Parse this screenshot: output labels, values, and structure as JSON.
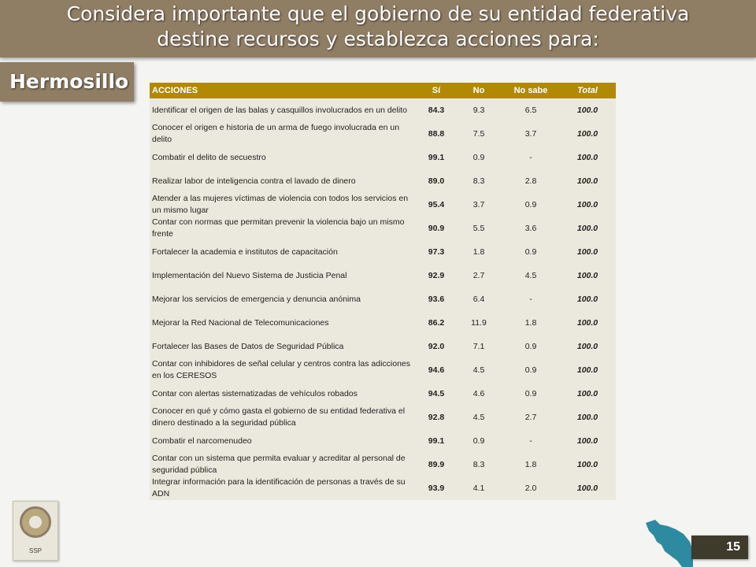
{
  "header": {
    "title_line1": "Considera importante que el gobierno de su entidad federativa",
    "title_line2": "destine recursos y establezca acciones para:"
  },
  "city": "Hermosillo",
  "table": {
    "columns": [
      "ACCIONES",
      "Sí",
      "No",
      "No sabe",
      "Total"
    ],
    "rows": [
      {
        "accion": "Identificar el origen de las balas y casquillos involucrados en un delito",
        "si": "84.3",
        "no": "9.3",
        "no_sabe": "6.5",
        "total": "100.0"
      },
      {
        "accion": "Conocer el origen e historia de un arma de fuego involucrada en un delito",
        "si": "88.8",
        "no": "7.5",
        "no_sabe": "3.7",
        "total": "100.0"
      },
      {
        "accion": "Combatir el delito de secuestro",
        "si": "99.1",
        "no": "0.9",
        "no_sabe": "-",
        "total": "100.0"
      },
      {
        "accion": "Realizar labor de inteligencia contra el lavado de dinero",
        "si": "89.0",
        "no": "8.3",
        "no_sabe": "2.8",
        "total": "100.0"
      },
      {
        "accion": "Atender a las mujeres víctimas de violencia con todos los servicios en un mismo lugar",
        "si": "95.4",
        "no": "3.7",
        "no_sabe": "0.9",
        "total": "100.0"
      },
      {
        "accion": "Contar con normas que permitan prevenir la violencia bajo un mismo frente",
        "si": "90.9",
        "no": "5.5",
        "no_sabe": "3.6",
        "total": "100.0"
      },
      {
        "accion": "Fortalecer la academia e institutos de capacitación",
        "si": "97.3",
        "no": "1.8",
        "no_sabe": "0.9",
        "total": "100.0"
      },
      {
        "accion": "Implementación del Nuevo Sistema de Justicia Penal",
        "si": "92.9",
        "no": "2.7",
        "no_sabe": "4.5",
        "total": "100.0"
      },
      {
        "accion": "Mejorar los servicios de emergencia y denuncia anónima",
        "si": "93.6",
        "no": "6.4",
        "no_sabe": "-",
        "total": "100.0"
      },
      {
        "accion": "Mejorar la Red Nacional de Telecomunicaciones",
        "si": "86.2",
        "no": "11.9",
        "no_sabe": "1.8",
        "total": "100.0"
      },
      {
        "accion": "Fortalecer las Bases de Datos de Seguridad Pública",
        "si": "92.0",
        "no": "7.1",
        "no_sabe": "0.9",
        "total": "100.0"
      },
      {
        "accion": "Contar con inhibidores de señal celular y centros contra las adicciones en los CERESOS",
        "si": "94.6",
        "no": "4.5",
        "no_sabe": "0.9",
        "total": "100.0"
      },
      {
        "accion": "Contar con alertas sistematizadas de vehículos robados",
        "si": "94.5",
        "no": "4.6",
        "no_sabe": "0.9",
        "total": "100.0"
      },
      {
        "accion": "Conocer en qué y cómo gasta el gobierno de su entidad federativa el dinero destinado a la seguridad pública",
        "si": "92.8",
        "no": "4.5",
        "no_sabe": "2.7",
        "total": "100.0"
      },
      {
        "accion": "Combatir el narcomenudeo",
        "si": "99.1",
        "no": "0.9",
        "no_sabe": "-",
        "total": "100.0"
      },
      {
        "accion": "Contar con un sistema que permita evaluar y acreditar al personal de seguridad pública",
        "si": "89.9",
        "no": "8.3",
        "no_sabe": "1.8",
        "total": "100.0"
      },
      {
        "accion": "Integrar información para la identificación de personas a través de su ADN",
        "si": "93.9",
        "no": "4.1",
        "no_sabe": "2.0",
        "total": "100.0"
      }
    ]
  },
  "logo": {
    "label": "SSP"
  },
  "map_color": "#2e8aa0",
  "page_number": "15"
}
